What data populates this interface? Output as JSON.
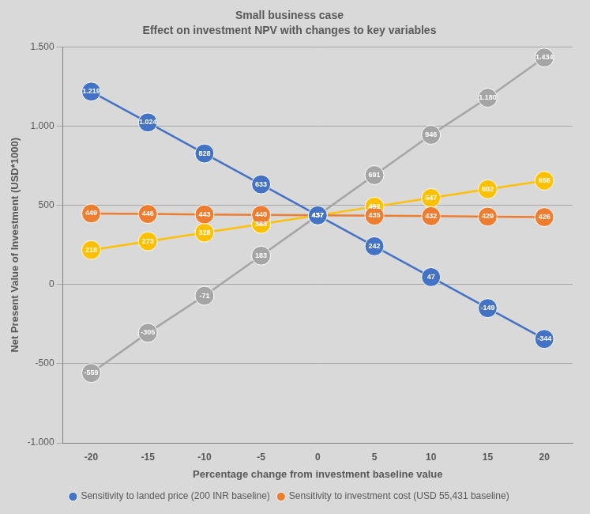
{
  "chart_data": {
    "type": "line",
    "title": "Small business case",
    "subtitle": "Effect on investment NPV with changes to key variables",
    "x_label": "Percentage change from investment baseline value",
    "y_label": "Net Present Value of Investment (USD*1000)",
    "categories": [
      -20,
      -15,
      -10,
      -5,
      0,
      5,
      10,
      15,
      20
    ],
    "series": [
      {
        "name": "Sensitivity to landed price (200 INR baseline)",
        "color": "#4472c4",
        "marker": "circle",
        "values": [
          1219,
          1024,
          828,
          633,
          437,
          242,
          47,
          -149,
          -344
        ],
        "value_labels": [
          "1.219",
          "1.024",
          "828",
          "633",
          "437",
          "242",
          "47",
          "-149",
          "-344"
        ]
      },
      {
        "name": "Sensitivity to investment cost (USD 55,431 baseline)",
        "color": "#ed7d31",
        "marker": "circle",
        "values": [
          449,
          446,
          443,
          440,
          437,
          435,
          432,
          429,
          426
        ]
      },
      {
        "color": "#a5a5a5",
        "marker": "circle",
        "values": [
          -559,
          -305,
          -71,
          183,
          437,
          691,
          946,
          1180,
          1434
        ],
        "value_labels": [
          "-559",
          "-305",
          "-71",
          "183",
          "437",
          "691",
          "946",
          "1.180",
          "1.434"
        ]
      },
      {
        "color": "#ffc000",
        "marker": "circle",
        "values": [
          218,
          273,
          328,
          383,
          437,
          492,
          547,
          602,
          656
        ]
      }
    ],
    "ylim": [
      -1000,
      1500
    ],
    "yticks": [
      {
        "value": -1000,
        "label": "-1.000"
      },
      -500,
      0,
      500,
      {
        "value": 1000,
        "label": "1.000"
      },
      {
        "value": 1500,
        "label": "1.500"
      }
    ],
    "grid": true,
    "legend": "bottom",
    "data_labels": true
  }
}
